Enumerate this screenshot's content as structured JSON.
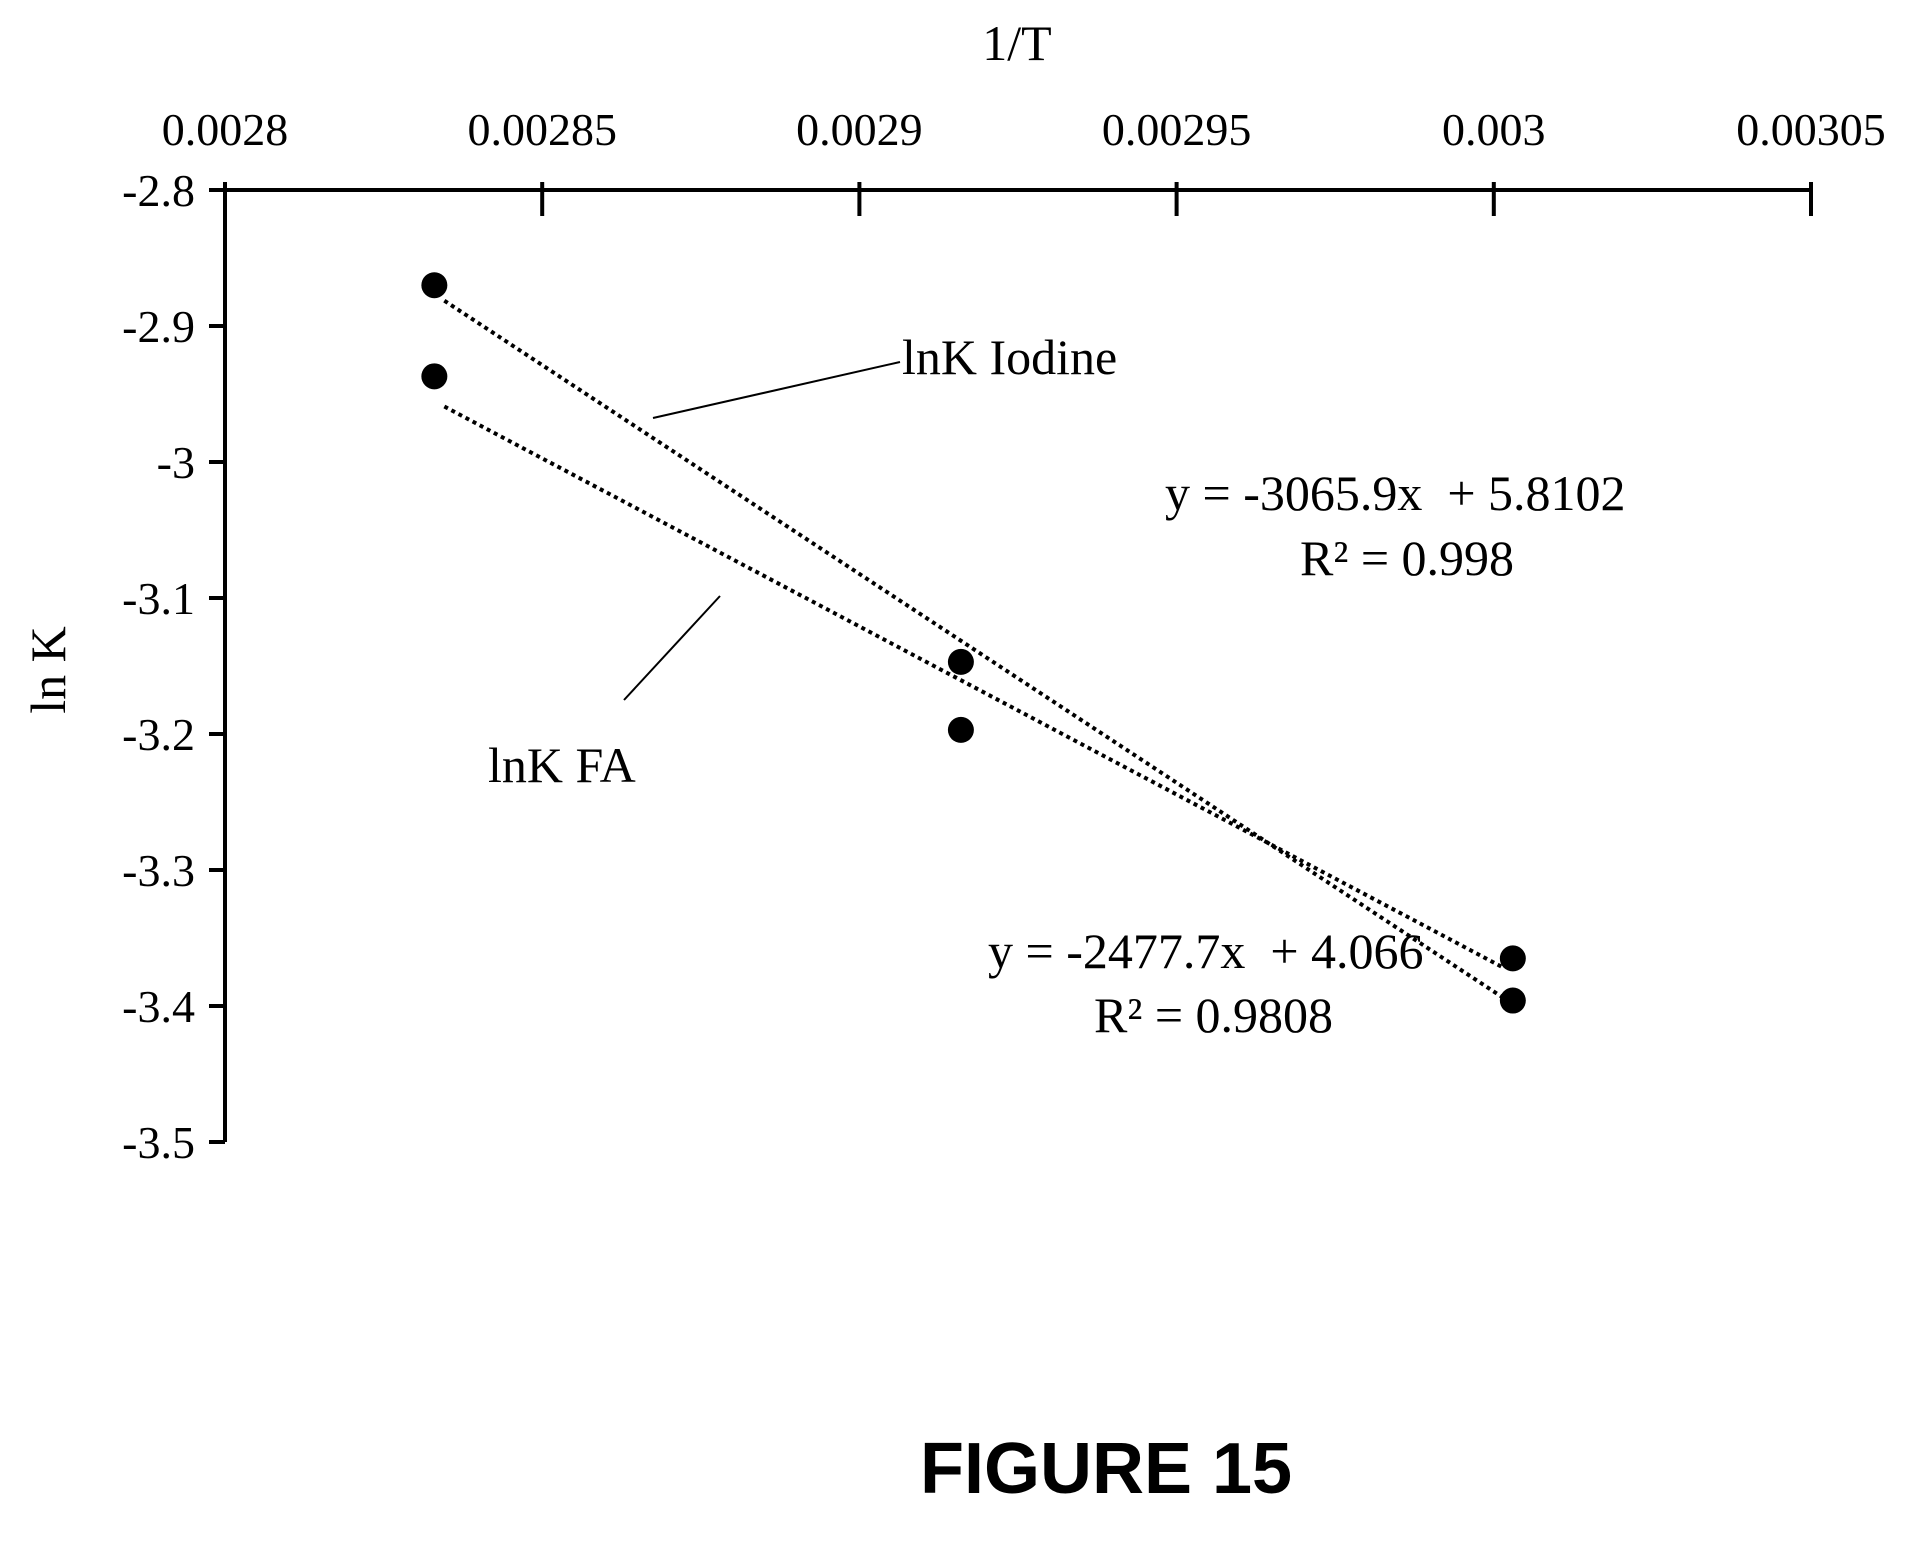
{
  "chart_data": {
    "type": "scatter",
    "xlabel": "1/T",
    "ylabel": "ln K",
    "xlim": [
      0.0028,
      0.00305
    ],
    "ylim": [
      -3.5,
      -2.8
    ],
    "x_ticks": [
      "0.0028",
      "0.00285",
      "0.0029",
      "0.00295",
      "0.003",
      "0.00305"
    ],
    "y_ticks": [
      "-2.8",
      "-2.9",
      "-3",
      "-3.1",
      "-3.2",
      "-3.3",
      "-3.4",
      "-3.5"
    ],
    "x_axis_position": "top",
    "grid": false,
    "series": [
      {
        "name": "lnK Iodine",
        "points": [
          [
            0.002833,
            -2.87
          ],
          [
            0.002916,
            -3.147
          ],
          [
            0.003003,
            -3.365
          ]
        ],
        "trendline": {
          "slope": -3065.9,
          "intercept": 5.8102
        },
        "equation": "y = -3065.9x  + 5.8102",
        "r2": "R² = 0.998"
      },
      {
        "name": "lnK FA",
        "points": [
          [
            0.002833,
            -2.937
          ],
          [
            0.002916,
            -3.197
          ],
          [
            0.003003,
            -3.396
          ]
        ],
        "trendline": {
          "slope": -2477.7,
          "intercept": 4.066
        },
        "equation": "y = -2477.7x  + 4.066",
        "r2": "R² = 0.9808"
      }
    ]
  },
  "figure_caption": "FIGURE 15",
  "colors": {
    "ink": "#000000",
    "background": "#ffffff"
  }
}
